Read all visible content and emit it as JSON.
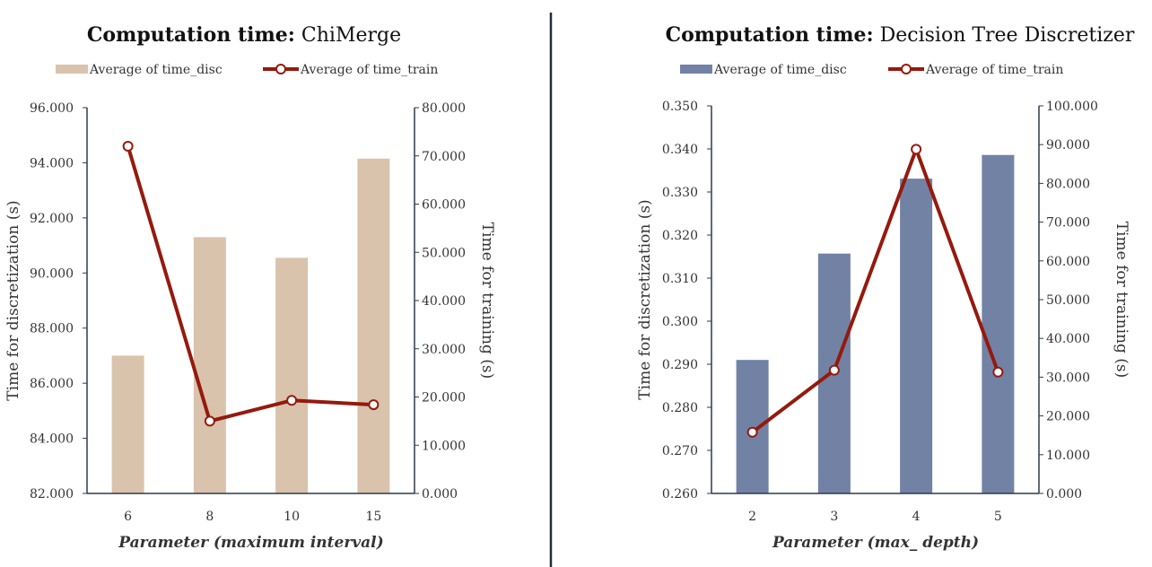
{
  "colors": {
    "divider": "#1f2d3d",
    "axis": "#2e3a4f",
    "text": "#333333",
    "line": "#941a0d",
    "marker_fill": "#ffffff"
  },
  "chart_data": [
    {
      "type": "bar+line",
      "title_bold": "Computation time:",
      "title_rest": "ChiMerge",
      "xlabel": "Parameter (maximum interval)",
      "ylabel_left": "Time for discretization (s)",
      "ylabel_right": "Time for training (s)",
      "categories": [
        "6",
        "8",
        "10",
        "15"
      ],
      "bar_color": "#d9c3ad",
      "left_axis": {
        "min": 82,
        "max": 96,
        "ticks": [
          "82.000",
          "84.000",
          "86.000",
          "88.000",
          "90.000",
          "92.000",
          "94.000",
          "96.000"
        ]
      },
      "right_axis": {
        "min": 0,
        "max": 80,
        "ticks": [
          "0.000",
          "10.000",
          "20.000",
          "30.000",
          "40.000",
          "50.000",
          "60.000",
          "70.000",
          "80.000"
        ]
      },
      "series": [
        {
          "name": "Average of time_disc",
          "kind": "bar",
          "axis": "left",
          "values": [
            87.0,
            91.3,
            90.55,
            94.15
          ]
        },
        {
          "name": "Average of time_train",
          "kind": "line",
          "axis": "right",
          "values": [
            72.0,
            15.0,
            19.3,
            18.4
          ]
        }
      ],
      "legend_position": "top"
    },
    {
      "type": "bar+line",
      "title_bold": "Computation time:",
      "title_rest": "Decision Tree Discretizer",
      "xlabel": "Parameter (max_ depth)",
      "ylabel_left": "Time for discretization (s)",
      "ylabel_right": "Time for training (s)",
      "categories": [
        "2",
        "3",
        "4",
        "5"
      ],
      "bar_color": "#7282a5",
      "left_axis": {
        "min": 0.26,
        "max": 0.35,
        "ticks": [
          "0.260",
          "0.270",
          "0.280",
          "0.290",
          "0.300",
          "0.310",
          "0.320",
          "0.330",
          "0.340",
          "0.350"
        ]
      },
      "right_axis": {
        "min": 0,
        "max": 100,
        "ticks": [
          "0.000",
          "10.000",
          "20.000",
          "30.000",
          "40.000",
          "50.000",
          "60.000",
          "70.000",
          "80.000",
          "90.000",
          "100.000"
        ]
      },
      "series": [
        {
          "name": "Average of time_disc",
          "kind": "bar",
          "axis": "left",
          "values": [
            0.291,
            0.3157,
            0.3331,
            0.3386
          ]
        },
        {
          "name": "Average of time_train",
          "kind": "line",
          "axis": "right",
          "values": [
            15.8,
            31.8,
            88.8,
            31.3
          ]
        }
      ],
      "legend_position": "top"
    }
  ]
}
